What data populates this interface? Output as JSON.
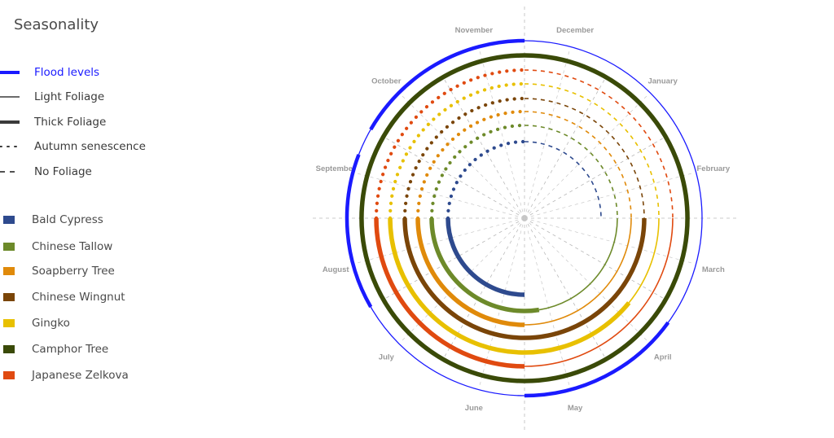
{
  "title": "Seasonality",
  "legend_lines": [
    {
      "key": "flood",
      "label": "Flood levels",
      "color": "#1a1aff",
      "style": "flood"
    },
    {
      "key": "light",
      "label": "Light Foliage",
      "color": "#3a3a3a",
      "style": "light"
    },
    {
      "key": "thick",
      "label": "Thick Foliage",
      "color": "#3a3a3a",
      "style": "thick"
    },
    {
      "key": "autumn",
      "label": "Autumn senescence",
      "color": "#3a3a3a",
      "style": "dotted"
    },
    {
      "key": "none",
      "label": "No Foliage",
      "color": "#3a3a3a",
      "style": "dashed"
    }
  ],
  "species": [
    {
      "name": "Bald Cypress",
      "color": "#2e4a8e"
    },
    {
      "name": "Chinese Tallow",
      "color": "#6d8a2a"
    },
    {
      "name": "Soapberry Tree",
      "color": "#e08a0a"
    },
    {
      "name": "Chinese Wingnut",
      "color": "#7a4508"
    },
    {
      "name": "Gingko",
      "color": "#e8c000"
    },
    {
      "name": "Camphor Tree",
      "color": "#3a4a08"
    },
    {
      "name": "Japanese Zelkova",
      "color": "#e04a10"
    }
  ],
  "months": [
    "December",
    "January",
    "February",
    "March",
    "April",
    "May",
    "June",
    "July",
    "August",
    "September",
    "October",
    "November"
  ],
  "chart_data": {
    "type": "radial-timeline",
    "flood": {
      "color": "#1a1aff",
      "thick_months": [
        4.2,
        6.0,
        8.0,
        9.7,
        10.0,
        12.0
      ]
    },
    "rings": [
      {
        "species": "Bald Cypress",
        "none": [
          0,
          3.0
        ],
        "thick": [
          6.0,
          9.0
        ],
        "autumn": [
          9.0,
          12.0
        ],
        "color": "#2e4a8e"
      },
      {
        "species": "Chinese Tallow",
        "none": [
          0,
          3.0
        ],
        "light": [
          3.0,
          5.7
        ],
        "thick": [
          5.7,
          9.0
        ],
        "autumn": [
          9.0,
          12.0
        ],
        "color": "#6d8a2a"
      },
      {
        "species": "Soapberry Tree",
        "none": [
          0,
          3.0
        ],
        "light": [
          3.0,
          6.0
        ],
        "thick": [
          6.0,
          9.0
        ],
        "autumn": [
          9.0,
          12.0
        ],
        "color": "#e08a0a"
      },
      {
        "species": "Chinese Wingnut",
        "none": [
          0,
          3.0
        ],
        "thick": [
          3.0,
          9.0
        ],
        "autumn": [
          9.0,
          12.0
        ],
        "color": "#7a4508"
      },
      {
        "species": "Gingko",
        "none": [
          0,
          3.0
        ],
        "light": [
          3.0,
          4.3
        ],
        "thick": [
          4.3,
          9.0
        ],
        "autumn": [
          9.0,
          12.0
        ],
        "color": "#e8c000"
      },
      {
        "species": "Japanese Zelkova",
        "none": [
          0,
          3.0
        ],
        "light": [
          3.0,
          6.0
        ],
        "thick": [
          6.0,
          9.0
        ],
        "autumn": [
          9.0,
          12.0
        ],
        "color": "#e04a10"
      },
      {
        "species": "Camphor Tree",
        "thick": [
          0,
          12.0
        ],
        "color": "#3a4a08"
      }
    ]
  }
}
